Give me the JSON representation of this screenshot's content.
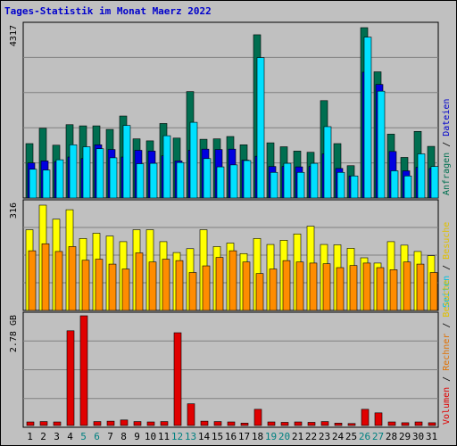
{
  "chart_data": [
    {
      "type": "bar",
      "title": "Tages-Statistik im Monat Maerz 2022",
      "ytick": "4317",
      "ylabel_parts": [
        {
          "text": "Anfragen",
          "color": "#007050"
        },
        {
          "text": " / ",
          "color": "#000000"
        },
        {
          "text": "Dateien",
          "color": "#0000cc"
        }
      ],
      "categories": [
        "1",
        "2",
        "3",
        "4",
        "5",
        "6",
        "7",
        "8",
        "9",
        "10",
        "11",
        "12",
        "13",
        "14",
        "15",
        "16",
        "17",
        "18",
        "19",
        "20",
        "21",
        "22",
        "23",
        "24",
        "25",
        "26",
        "27",
        "28",
        "29",
        "30",
        "31"
      ],
      "series": [
        {
          "name": "Anfragen",
          "color": "#006e50",
          "values": [
            1380,
            1770,
            1340,
            1860,
            1830,
            1830,
            1740,
            2080,
            1500,
            1450,
            1890,
            1520,
            2700,
            1490,
            1500,
            1560,
            1350,
            4140,
            1400,
            1300,
            1190,
            1160,
            2470,
            1380,
            820,
            4320,
            3200,
            1620,
            1030,
            1690,
            1310
          ]
        },
        {
          "name": "Dateien",
          "color": "#0000e0",
          "values": [
            890,
            940,
            920,
            1040,
            1000,
            1350,
            1230,
            1040,
            1210,
            1190,
            1070,
            940,
            1210,
            1240,
            1230,
            1240,
            960,
            1060,
            800,
            800,
            790,
            800,
            1120,
            750,
            560,
            3190,
            2880,
            1180,
            690,
            780,
            750
          ]
        },
        {
          "name": "Seiten",
          "color": "#00e0ff",
          "values": [
            730,
            710,
            970,
            1350,
            1300,
            1250,
            1020,
            1840,
            870,
            880,
            1580,
            900,
            1920,
            1000,
            790,
            840,
            950,
            3560,
            650,
            880,
            650,
            880,
            1810,
            650,
            560,
            4080,
            2710,
            690,
            560,
            1120,
            800
          ]
        }
      ]
    },
    {
      "type": "bar",
      "ytick": "316",
      "ylabel_parts": [
        {
          "text": "Seiten",
          "color": "#00c0e0"
        },
        {
          "text": " / ",
          "color": "#000000"
        },
        {
          "text": "Besuche",
          "color": "#e0c000"
        }
      ],
      "series": [
        {
          "name": "Seiten",
          "color": "#ffff00",
          "values": [
            230,
            300,
            260,
            287,
            205,
            220,
            212,
            196,
            230,
            230,
            196,
            165,
            176,
            230,
            182,
            192,
            162,
            205,
            188,
            200,
            218,
            240,
            188,
            187,
            177,
            150,
            135,
            196,
            186,
            168,
            156
          ]
        },
        {
          "name": "Besuche",
          "color": "#ff8c00",
          "values": [
            170,
            190,
            168,
            182,
            143,
            146,
            132,
            118,
            164,
            138,
            146,
            142,
            108,
            127,
            151,
            170,
            138,
            105,
            118,
            142,
            138,
            135,
            133,
            122,
            128,
            135,
            122,
            116,
            138,
            132,
            108
          ]
        }
      ]
    },
    {
      "type": "bar",
      "ytick": "2.78 GB",
      "ylabel_parts": [
        {
          "text": "Volumen",
          "color": "#e00000"
        },
        {
          "text": " / ",
          "color": "#000000"
        },
        {
          "text": "Rechner",
          "color": "#e07000"
        },
        {
          "text": " / ",
          "color": "#000000"
        },
        {
          "text": "Besuche",
          "color": "#e0c000"
        }
      ],
      "series": [
        {
          "name": "Volumen",
          "color": "#e00000",
          "values": [
            0.09,
            0.1,
            0.09,
            2.4,
            2.78,
            0.1,
            0.11,
            0.14,
            0.1,
            0.09,
            0.1,
            2.35,
            0.55,
            0.11,
            0.1,
            0.09,
            0.06,
            0.41,
            0.09,
            0.08,
            0.09,
            0.08,
            0.1,
            0.06,
            0.05,
            0.41,
            0.32,
            0.09,
            0.07,
            0.09,
            0.07
          ]
        }
      ]
    }
  ],
  "colors": {
    "weekend_label": "#008080",
    "weekday_label": "#000000",
    "weekend_days": [
      5,
      6,
      12,
      13,
      19,
      20,
      26,
      27
    ]
  }
}
